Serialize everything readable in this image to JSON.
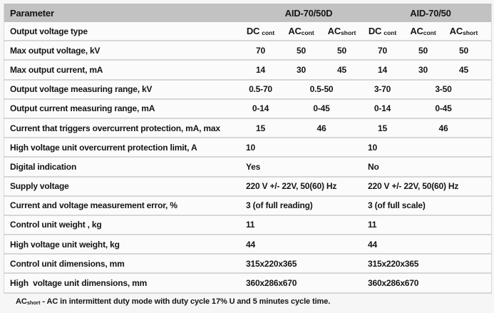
{
  "products": [
    "AID-70/50D",
    "AID-70/50"
  ],
  "colors": {
    "header_bg": "#c2c2c2",
    "row_bg": "#fbfbfb",
    "separator": "#d7d7d7",
    "text": "#151515"
  },
  "header": {
    "param": "Parameter",
    "group1": "AID-70/50D",
    "group2": "AID-70/50"
  },
  "subcols": {
    "param": "Output voltage type",
    "cols": [
      {
        "main": "DC",
        "sub": "cont"
      },
      {
        "main": "AC",
        "sub": "cont"
      },
      {
        "main": "AC",
        "sub": "short"
      },
      {
        "main": "DC",
        "sub": "cont"
      },
      {
        "main": "AC",
        "sub": "cont"
      },
      {
        "main": "AC",
        "sub": "short"
      }
    ]
  },
  "rows": [
    {
      "param": "Max output voltage, kV",
      "type": "six",
      "values": [
        "70",
        "50",
        "50",
        "70",
        "50",
        "50"
      ]
    },
    {
      "param": "Max output current, mA",
      "type": "six",
      "values": [
        "14",
        "30",
        "45",
        "14",
        "30",
        "45"
      ]
    },
    {
      "param": "Output voltage measuring range, kV",
      "type": "pairs",
      "values": [
        "0.5-70",
        "0.5-50",
        "3-70",
        "3-50"
      ]
    },
    {
      "param": "Output current measuring range, mA",
      "type": "pairs",
      "values": [
        "0-14",
        "0-45",
        "0-14",
        "0-45"
      ]
    },
    {
      "param": "Current that triggers overcurrent protection, mA, max",
      "type": "pairs",
      "values": [
        "15",
        "46",
        "15",
        "46"
      ]
    },
    {
      "param": "High voltage unit overcurrent protection limit, A",
      "type": "single",
      "values": [
        "10",
        "10"
      ]
    },
    {
      "param": "Digital indication",
      "type": "single",
      "values": [
        "Yes",
        "No"
      ]
    },
    {
      "param": "Supply voltage",
      "type": "single",
      "values": [
        "220 V +/- 22V, 50(60) Hz",
        "220 V +/- 22V, 50(60) Hz"
      ]
    },
    {
      "param": "Current and voltage measurement error, %",
      "type": "single",
      "values": [
        "3 (of full reading)",
        "3 (of full scale)"
      ]
    },
    {
      "param": "Control unit weight , kg",
      "type": "single",
      "values": [
        "11",
        "11"
      ]
    },
    {
      "param": "High voltage unit weight, kg",
      "type": "single",
      "values": [
        "44",
        "44"
      ]
    },
    {
      "param": "Control unit dimensions, mm",
      "type": "single",
      "values": [
        "315x220x365",
        "315x220x365"
      ]
    },
    {
      "param": "High  voltage unit dimensions, mm",
      "type": "single",
      "values": [
        "360x286x670",
        "360x286x670"
      ]
    }
  ],
  "footnote": {
    "prefix": "AC",
    "sub": "short",
    "rest": " - AC in intermittent duty mode with duty cycle 17% U and 5 minutes cycle time."
  }
}
